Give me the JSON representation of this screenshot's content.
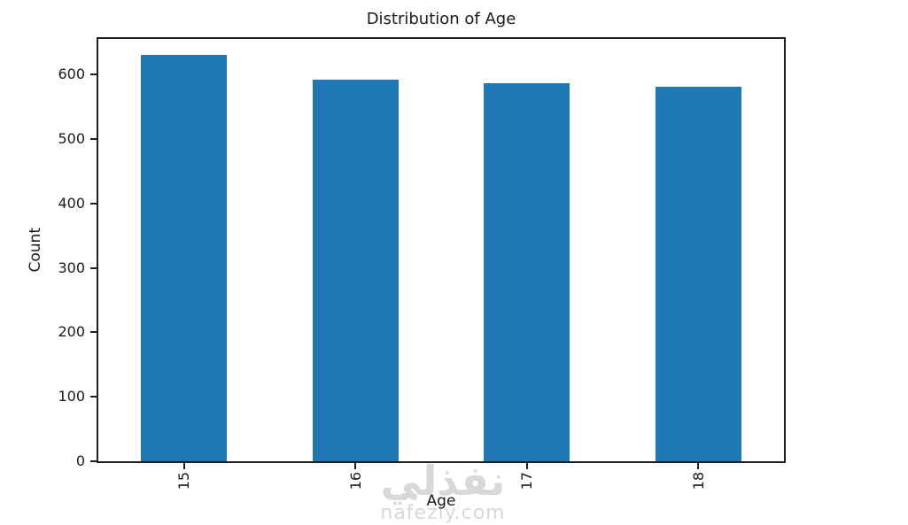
{
  "chart_data": {
    "type": "bar",
    "title": "Distribution of Age",
    "xlabel": "Age",
    "ylabel": "Count",
    "categories": [
      "15",
      "16",
      "17",
      "18"
    ],
    "values": [
      630,
      592,
      587,
      581
    ],
    "yticks": [
      0,
      100,
      200,
      300,
      400,
      500,
      600
    ],
    "ylim": [
      0,
      655
    ],
    "xtick_rotation": 90,
    "grid": false,
    "legend": null,
    "bar_color": "#1f77b4",
    "text_color": "#1a1a1a",
    "background": "#ffffff"
  },
  "watermark": {
    "logo_text": "نفذلي",
    "site_text": "nafezly.com",
    "color": "#d8d8d8"
  }
}
